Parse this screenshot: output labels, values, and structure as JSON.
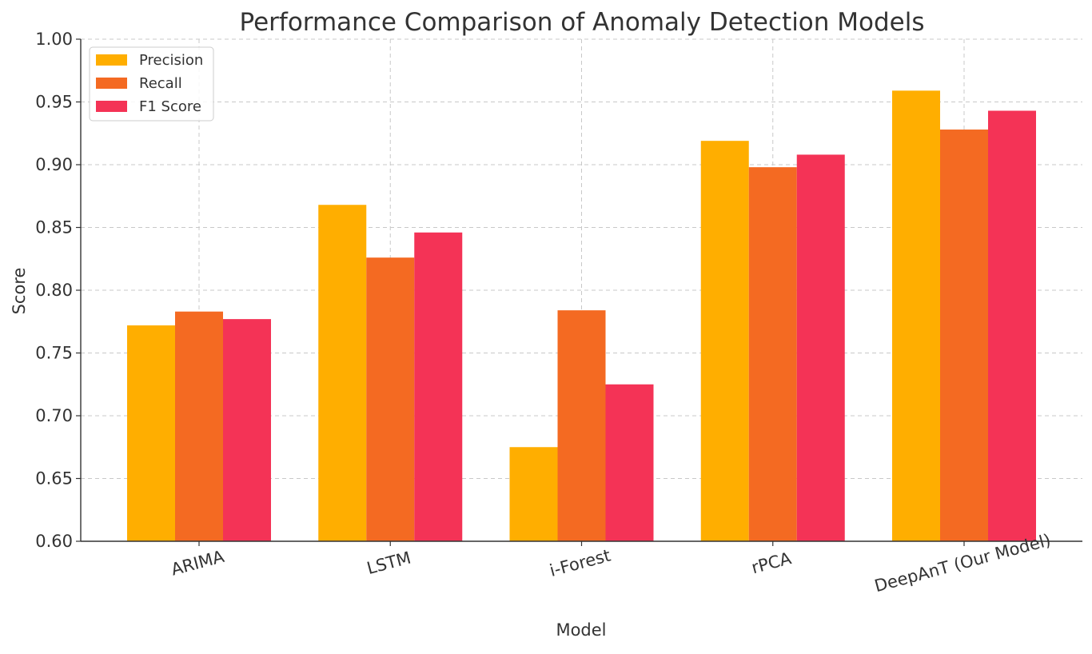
{
  "chart_data": {
    "type": "bar",
    "title": "Performance Comparison of Anomaly Detection Models",
    "xlabel": "Model",
    "ylabel": "Score",
    "categories": [
      "ARIMA",
      "LSTM",
      "i-Forest",
      "rPCA",
      "DeepAnT (Our Model)"
    ],
    "series": [
      {
        "name": "Precision",
        "color": "#FFAE00",
        "values": [
          0.772,
          0.868,
          0.675,
          0.919,
          0.959
        ]
      },
      {
        "name": "Recall",
        "color": "#F46A22",
        "values": [
          0.783,
          0.826,
          0.784,
          0.898,
          0.928
        ]
      },
      {
        "name": "F1 Score",
        "color": "#F43356",
        "values": [
          0.777,
          0.846,
          0.725,
          0.908,
          0.943
        ]
      }
    ],
    "ylim": [
      0.6,
      1.0
    ],
    "yticks": [
      "0.60",
      "0.65",
      "0.70",
      "0.75",
      "0.80",
      "0.85",
      "0.90",
      "0.95",
      "1.00"
    ],
    "xtick_rotation_deg": -15,
    "grid": true,
    "legend_position": "top-left"
  }
}
